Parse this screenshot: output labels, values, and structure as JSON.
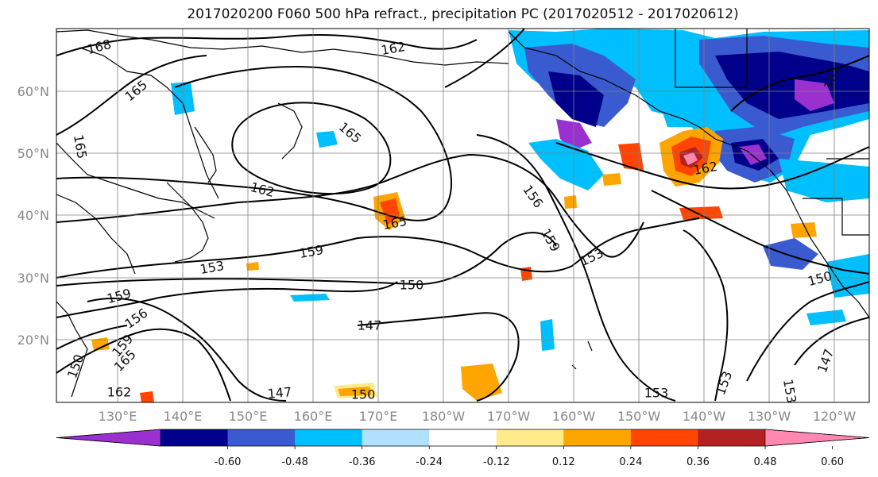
{
  "title": "2017020200 F060 500 hPa refract., precipitation PC (2017020512 - 2017020612)",
  "lat_labels": [
    "60°N",
    "50°N",
    "40°N",
    "30°N",
    "20°N"
  ],
  "lon_labels": [
    "130°E",
    "140°E",
    "150°E",
    "160°E",
    "170°E",
    "180°W",
    "170°W",
    "160°W",
    "150°W",
    "140°W",
    "130°W",
    "120°W"
  ],
  "contour_labels": [
    "168",
    "165",
    "165",
    "162",
    "165",
    "162",
    "165",
    "156",
    "159",
    "153",
    "159",
    "153",
    "150",
    "159",
    "156",
    "147",
    "162",
    "153",
    "147",
    "150",
    "165",
    "153",
    "153",
    "150",
    "147",
    "150",
    "159",
    "165",
    "162"
  ],
  "colorbar": {
    "colors": [
      "#9b30d0",
      "#00008b",
      "#3a5bd0",
      "#00bfff",
      "#b0e2ff",
      "#ffffff",
      "#ffeb8a",
      "#ffa500",
      "#ff4500",
      "#b22222",
      "#ff88b0"
    ],
    "tick_labels": [
      "-0.60",
      "-0.48",
      "-0.36",
      "-0.24",
      "-0.12",
      "0.12",
      "0.24",
      "0.36",
      "0.48",
      "0.60"
    ]
  }
}
